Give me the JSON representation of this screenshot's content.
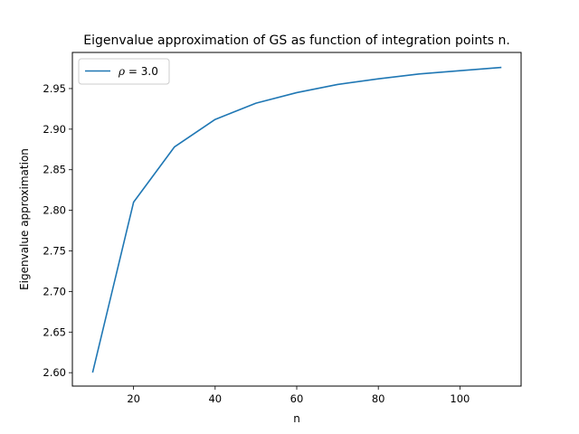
{
  "chart_data": {
    "type": "line",
    "title": "Eigenvalue approximation of GS as function of integration points n.",
    "xlabel": "n",
    "ylabel": "Eigenvalue approximation",
    "xlim": [
      5,
      115
    ],
    "ylim": [
      2.5835,
      2.9945
    ],
    "xticks": [
      20,
      40,
      60,
      80,
      100
    ],
    "yticks": [
      2.6,
      2.65,
      2.7,
      2.75,
      2.8,
      2.85,
      2.9,
      2.95
    ],
    "ytick_labels": [
      "2.60",
      "2.65",
      "2.70",
      "2.75",
      "2.80",
      "2.85",
      "2.90",
      "2.95"
    ],
    "grid": false,
    "legend_position": "top-left",
    "series": [
      {
        "name_symbol": "ρ",
        "name_rest": " = 3.0",
        "color": "#1f77b4",
        "x": [
          10,
          20,
          30,
          40,
          50,
          60,
          70,
          80,
          90,
          100,
          110
        ],
        "values": [
          2.601,
          2.81,
          2.878,
          2.912,
          2.932,
          2.945,
          2.955,
          2.962,
          2.968,
          2.972,
          2.976
        ]
      }
    ]
  }
}
